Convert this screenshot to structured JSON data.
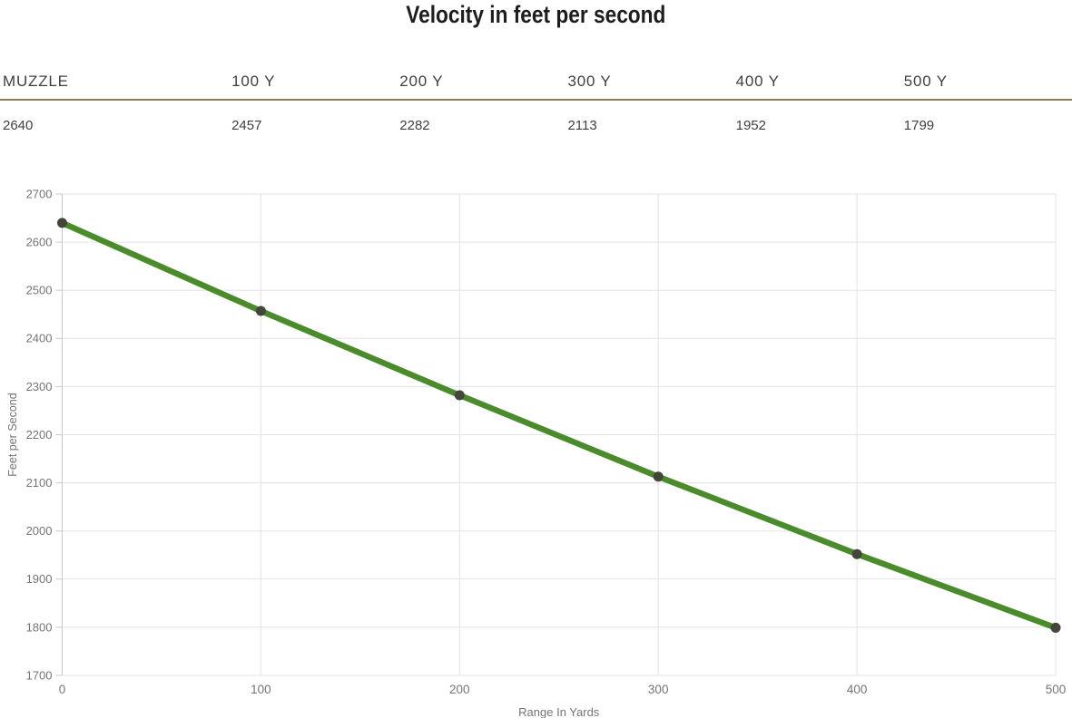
{
  "title": "Velocity in feet per second",
  "table": {
    "columns": [
      {
        "header": "MUZZLE",
        "value": "2640"
      },
      {
        "header": "100 Y",
        "value": "2457"
      },
      {
        "header": "200 Y",
        "value": "2282"
      },
      {
        "header": "300 Y",
        "value": "2113"
      },
      {
        "header": "400 Y",
        "value": "1952"
      },
      {
        "header": "500 Y",
        "value": "1799"
      }
    ],
    "divider_color": "#8b7c55"
  },
  "chart_data": {
    "type": "line",
    "title": "Velocity in feet per second",
    "x": [
      0,
      100,
      200,
      300,
      400,
      500
    ],
    "values": [
      2640,
      2457,
      2282,
      2113,
      1952,
      1799
    ],
    "xlabel": "Range In Yards",
    "ylabel": "Feet per Second",
    "xlim": [
      0,
      500
    ],
    "ylim": [
      1700,
      2700
    ],
    "xtick_step": 100,
    "ytick_step": 100,
    "grid": true,
    "legend": "none",
    "line_color": "#4a8b2c",
    "marker_color": "#43463a",
    "colors": {
      "grid": "#e3e3e3",
      "axis": "#c9c9c9",
      "tick_label": "#757575",
      "title": "#1d1d1b"
    }
  }
}
